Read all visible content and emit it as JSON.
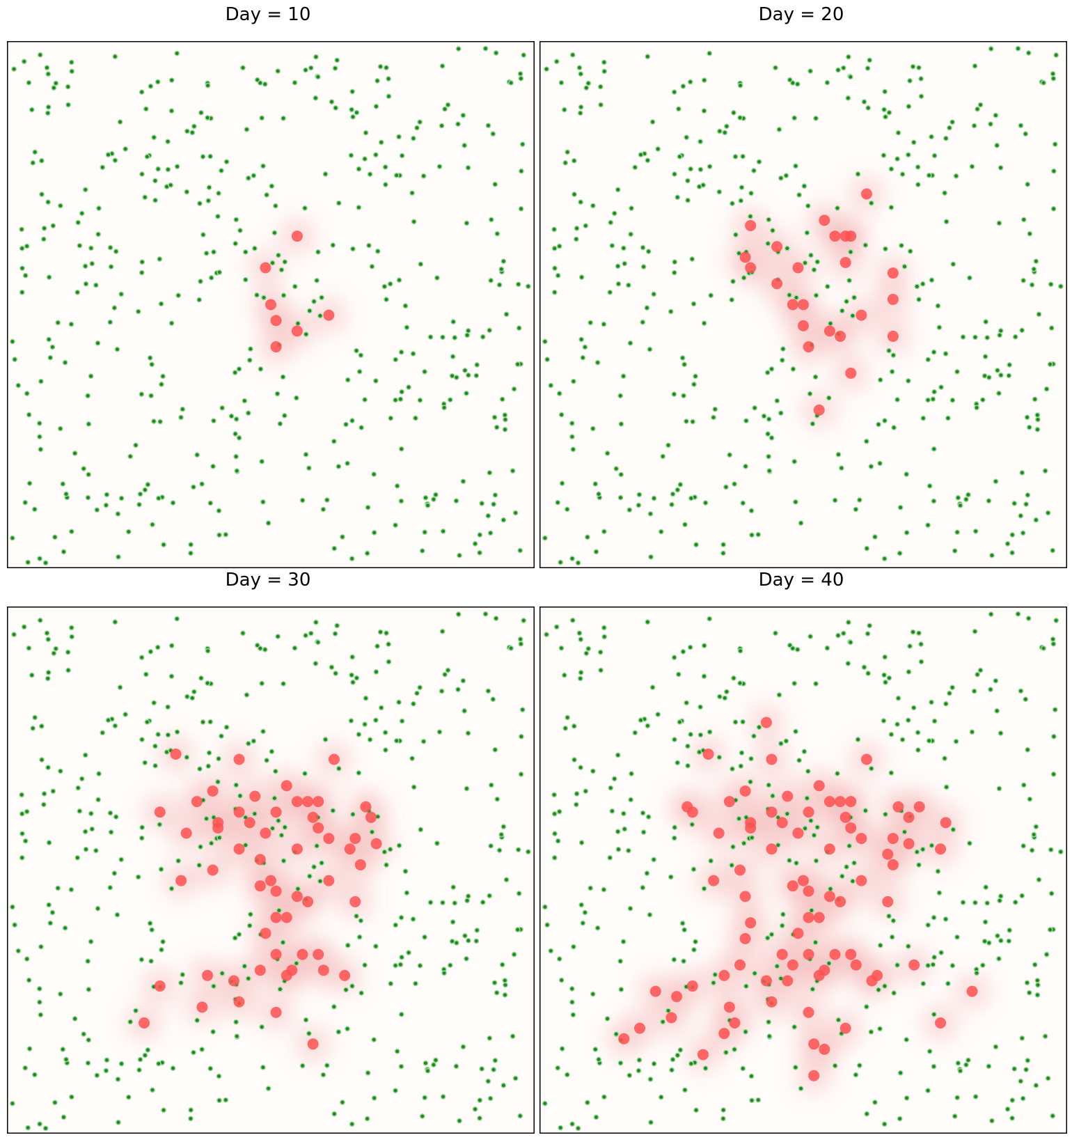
{
  "chart_data": [
    {
      "type": "scatter",
      "title": "Day = 10",
      "xlim": [
        0,
        100
      ],
      "ylim": [
        0,
        100
      ],
      "axes_visible": false,
      "background": "#fffcfa",
      "series": [
        {
          "color": "#1e8a1e",
          "points": []
        },
        {
          "color": "#ff5050",
          "points": [
            [
              55,
              63
            ],
            [
              49,
              57
            ],
            [
              50,
              50
            ],
            [
              51,
              47
            ],
            [
              55,
              45
            ],
            [
              61,
              48
            ],
            [
              51,
              42
            ]
          ]
        }
      ]
    },
    {
      "type": "scatter",
      "title": "Day = 20",
      "xlim": [
        0,
        100
      ],
      "ylim": [
        0,
        100
      ],
      "axes_visible": false,
      "background": "#fffcfa",
      "series": [
        {
          "color": "#1e8a1e",
          "points": []
        },
        {
          "color": "#ff5050",
          "points": [
            [
              62,
              71
            ],
            [
              40,
              65
            ],
            [
              54,
              66
            ],
            [
              56,
              63
            ],
            [
              58,
              63
            ],
            [
              59,
              63
            ],
            [
              45,
              61
            ],
            [
              39,
              59
            ],
            [
              40,
              57
            ],
            [
              58,
              58
            ],
            [
              49,
              57
            ],
            [
              67,
              56
            ],
            [
              45,
              54
            ],
            [
              48,
              50
            ],
            [
              50,
              50
            ],
            [
              67,
              51
            ],
            [
              61,
              48
            ],
            [
              50,
              46
            ],
            [
              55,
              45
            ],
            [
              57,
              44
            ],
            [
              67,
              44
            ],
            [
              51,
              42
            ],
            [
              59,
              37
            ],
            [
              53,
              30
            ]
          ]
        }
      ]
    },
    {
      "type": "scatter",
      "title": "Day = 30",
      "xlim": [
        0,
        100
      ],
      "ylim": [
        0,
        100
      ],
      "axes_visible": false,
      "background": "#fffcfa",
      "series": [
        {
          "color": "#1e8a1e",
          "points": []
        },
        {
          "color": "#ff5050",
          "points": [
            [
              32,
              72
            ],
            [
              44,
              71
            ],
            [
              62,
              71
            ],
            [
              53,
              66
            ],
            [
              39,
              65
            ],
            [
              36,
              63
            ],
            [
              47,
              64
            ],
            [
              55,
              63
            ],
            [
              57,
              63
            ],
            [
              59,
              63
            ],
            [
              68,
              62
            ],
            [
              29,
              61
            ],
            [
              44,
              61
            ],
            [
              51,
              61
            ],
            [
              46,
              59
            ],
            [
              58,
              60
            ],
            [
              40,
              59
            ],
            [
              69,
              60
            ],
            [
              34,
              57
            ],
            [
              40,
              58
            ],
            [
              49,
              57
            ],
            [
              59,
              58
            ],
            [
              61,
              56
            ],
            [
              66,
              56
            ],
            [
              70,
              55
            ],
            [
              44,
              54
            ],
            [
              55,
              54
            ],
            [
              65,
              54
            ],
            [
              48,
              52
            ],
            [
              67,
              51
            ],
            [
              39,
              50
            ],
            [
              33,
              48
            ],
            [
              50,
              48
            ],
            [
              48,
              47
            ],
            [
              61,
              48
            ],
            [
              51,
              46
            ],
            [
              55,
              45
            ],
            [
              57,
              44
            ],
            [
              66,
              44
            ],
            [
              51,
              41
            ],
            [
              53,
              41
            ],
            [
              49,
              38
            ],
            [
              51,
              34
            ],
            [
              56,
              34
            ],
            [
              59,
              34
            ],
            [
              38,
              30
            ],
            [
              48,
              31
            ],
            [
              60,
              31
            ],
            [
              54,
              31
            ],
            [
              53,
              30
            ],
            [
              43,
              29
            ],
            [
              64,
              30
            ],
            [
              29,
              28
            ],
            [
              44,
              25
            ],
            [
              37,
              24
            ],
            [
              51,
              23
            ],
            [
              26,
              21
            ],
            [
              58,
              17
            ]
          ]
        }
      ]
    },
    {
      "type": "scatter",
      "title": "Day = 40",
      "xlim": [
        0,
        100
      ],
      "ylim": [
        0,
        100
      ],
      "axes_visible": false,
      "background": "#fffcfa",
      "series": [
        {
          "color": "#1e8a1e",
          "points": []
        },
        {
          "color": "#ff5050",
          "points": [
            [
              43,
              78
            ],
            [
              32,
              72
            ],
            [
              44,
              71
            ],
            [
              62,
              71
            ],
            [
              53,
              66
            ],
            [
              39,
              65
            ],
            [
              36,
              63
            ],
            [
              47,
              64
            ],
            [
              55,
              63
            ],
            [
              57,
              63
            ],
            [
              59,
              63
            ],
            [
              68,
              62
            ],
            [
              72,
              62
            ],
            [
              28,
              62
            ],
            [
              29,
              61
            ],
            [
              70,
              60
            ],
            [
              44,
              61
            ],
            [
              51,
              61
            ],
            [
              46,
              59
            ],
            [
              58,
              60
            ],
            [
              40,
              59
            ],
            [
              77,
              59
            ],
            [
              34,
              57
            ],
            [
              40,
              58
            ],
            [
              49,
              57
            ],
            [
              59,
              58
            ],
            [
              61,
              56
            ],
            [
              67,
              56
            ],
            [
              70,
              55
            ],
            [
              44,
              54
            ],
            [
              55,
              54
            ],
            [
              76,
              54
            ],
            [
              66,
              53
            ],
            [
              67,
              51
            ],
            [
              38,
              50
            ],
            [
              33,
              48
            ],
            [
              50,
              48
            ],
            [
              48,
              47
            ],
            [
              61,
              48
            ],
            [
              51,
              46
            ],
            [
              55,
              45
            ],
            [
              39,
              45
            ],
            [
              57,
              44
            ],
            [
              66,
              44
            ],
            [
              51,
              41
            ],
            [
              53,
              41
            ],
            [
              40,
              40
            ],
            [
              49,
              38
            ],
            [
              39,
              37
            ],
            [
              51,
              34
            ],
            [
              56,
              34
            ],
            [
              59,
              34
            ],
            [
              46,
              34
            ],
            [
              38,
              32
            ],
            [
              48,
              32
            ],
            [
              60,
              32
            ],
            [
              54,
              31
            ],
            [
              53,
              30
            ],
            [
              43,
              29
            ],
            [
              64,
              30
            ],
            [
              71,
              32
            ],
            [
              63,
              29
            ],
            [
              35,
              30
            ],
            [
              47,
              29
            ],
            [
              29,
              28
            ],
            [
              22,
              27
            ],
            [
              44,
              25
            ],
            [
              36,
              24
            ],
            [
              26,
              26
            ],
            [
              51,
              23
            ],
            [
              25,
              22
            ],
            [
              37,
              21
            ],
            [
              19,
              20
            ],
            [
              58,
              20
            ],
            [
              16,
              18
            ],
            [
              35,
              19
            ],
            [
              54,
              16
            ],
            [
              52,
              17
            ],
            [
              31,
              15
            ],
            [
              52,
              11
            ],
            [
              76,
              21
            ],
            [
              82,
              27
            ]
          ]
        }
      ]
    }
  ]
}
